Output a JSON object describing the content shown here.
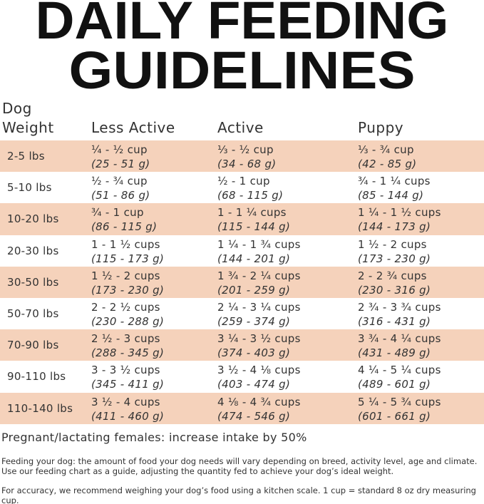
{
  "header": {
    "title_lines": [
      "DAILY FEEDING",
      "GUIDELINES"
    ]
  },
  "table": {
    "headers": [
      [
        "Dog",
        "Weight"
      ],
      [
        "Less Active"
      ],
      [
        "Active"
      ],
      [
        "Puppy"
      ]
    ],
    "rows": [
      {
        "weight": "2-5 lbs",
        "cells": [
          {
            "amount": "¼ - ½ cup",
            "grams": "(25 - 51 g)"
          },
          {
            "amount": "⅓ - ½ cup",
            "grams": "(34 - 68 g)"
          },
          {
            "amount": "⅓ - ¾ cup",
            "grams": "(42 - 85 g)"
          }
        ]
      },
      {
        "weight": "5-10 lbs",
        "cells": [
          {
            "amount": "½ - ¾ cup",
            "grams": "(51 - 86 g)"
          },
          {
            "amount": "½ - 1 cup",
            "grams": "(68 - 115 g)"
          },
          {
            "amount": "¾ - 1 ¼ cups",
            "grams": "(85 - 144 g)"
          }
        ]
      },
      {
        "weight": "10-20 lbs",
        "cells": [
          {
            "amount": "¾ - 1 cup",
            "grams": "(86 - 115 g)"
          },
          {
            "amount": "1 - 1 ¼ cups",
            "grams": "(115 - 144 g)"
          },
          {
            "amount": "1 ¼ - 1 ½ cups",
            "grams": "(144 - 173 g)"
          }
        ]
      },
      {
        "weight": "20-30 lbs",
        "cells": [
          {
            "amount": "1 - 1 ½ cups",
            "grams": "(115 - 173 g)"
          },
          {
            "amount": "1 ¼ - 1 ¾ cups",
            "grams": "(144 - 201 g)"
          },
          {
            "amount": "1 ½ - 2 cups",
            "grams": "(173 - 230 g)"
          }
        ]
      },
      {
        "weight": "30-50 lbs",
        "cells": [
          {
            "amount": "1 ½ - 2 cups",
            "grams": "(173 - 230 g)"
          },
          {
            "amount": "1 ¾ - 2 ¼ cups",
            "grams": "(201 - 259 g)"
          },
          {
            "amount": "2 - 2 ¾ cups",
            "grams": "(230 - 316 g)"
          }
        ]
      },
      {
        "weight": "50-70 lbs",
        "cells": [
          {
            "amount": "2 - 2 ½ cups",
            "grams": "(230 - 288 g)"
          },
          {
            "amount": "2 ¼ - 3 ¼ cups",
            "grams": "(259 - 374 g)"
          },
          {
            "amount": "2 ¾ - 3 ¾ cups",
            "grams": "(316 - 431 g)"
          }
        ]
      },
      {
        "weight": "70-90 lbs",
        "cells": [
          {
            "amount": "2 ½ - 3 cups",
            "grams": "(288 - 345 g)"
          },
          {
            "amount": "3 ¼ - 3 ½ cups",
            "grams": "(374 - 403 g)"
          },
          {
            "amount": "3 ¾ - 4 ¼ cups",
            "grams": "(431 - 489 g)"
          }
        ]
      },
      {
        "weight": "90-110 lbs",
        "cells": [
          {
            "amount": "3 - 3 ½ cups",
            "grams": "(345 - 411 g)"
          },
          {
            "amount": "3 ½ - 4 ⅛ cups",
            "grams": "(403 - 474 g)"
          },
          {
            "amount": "4 ¼ - 5 ¼ cups",
            "grams": "(489 - 601 g)"
          }
        ]
      },
      {
        "weight": "110-140 lbs",
        "cells": [
          {
            "amount": "3 ½ - 4 cups",
            "grams": "(411 - 460 g)"
          },
          {
            "amount": "4 ⅛ - 4 ¾ cups",
            "grams": "(474 - 546 g)"
          },
          {
            "amount": "5 ¼ - 5 ¾ cups",
            "grams": "(601 - 661 g)"
          }
        ]
      }
    ]
  },
  "notes": {
    "pregnant": "Pregnant/lactating females: increase intake by 50%",
    "feeding": "Feeding your dog: the amount of food your dog needs will vary depending on breed, activity level, age and climate. Use our feeding chart as a guide, adjusting the quantity fed to achieve your dog’s ideal weight.",
    "accuracy": "For accuracy, we recommend weighing your dog’s food using a kitchen scale. 1 cup = standard 8 oz dry measuring cup."
  }
}
